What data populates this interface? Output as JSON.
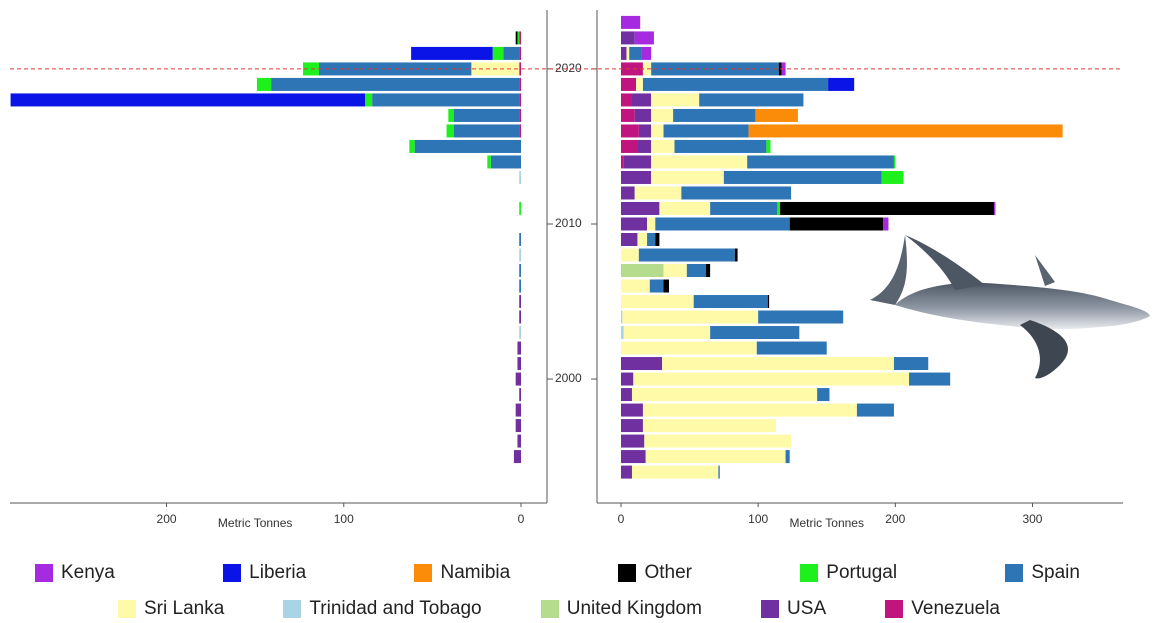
{
  "chart_data": [
    {
      "type": "bar",
      "orientation": "horizontal",
      "stacked": true,
      "x_reversed": true,
      "xlabel": "Metric Tonnes",
      "xlim": [
        0,
        303
      ],
      "xticks": [
        0,
        100,
        200,
        300
      ],
      "ylim": [
        1992.2,
        2023.8
      ],
      "yticks": [
        2000,
        2010,
        2020
      ],
      "reference_line": {
        "value": 2020,
        "color": "#e03a3a"
      },
      "y": [
        1994,
        1995,
        1996,
        1997,
        1998,
        1999,
        2000,
        2001,
        2002,
        2003,
        2004,
        2005,
        2006,
        2007,
        2008,
        2009,
        2010,
        2011,
        2012,
        2013,
        2014,
        2015,
        2016,
        2017,
        2018,
        2019,
        2020,
        2021,
        2022,
        2023
      ],
      "series": [
        {
          "values": [
            null,
            null,
            null,
            null,
            null,
            null,
            null,
            null,
            null,
            null,
            null,
            null,
            null,
            null,
            null,
            null,
            null,
            null,
            null,
            null,
            null,
            null,
            1,
            1,
            1,
            1,
            1,
            1,
            1,
            null
          ]
        },
        {
          "values": [
            null,
            4,
            2,
            3,
            3,
            1,
            3,
            2,
            2,
            null,
            1,
            1,
            null,
            null,
            null,
            null,
            null,
            null,
            null,
            null,
            null,
            null,
            null,
            null,
            null,
            null,
            null,
            null,
            null,
            null
          ]
        },
        {
          "values": [
            null,
            null,
            null,
            null,
            null,
            null,
            null,
            null,
            null,
            null,
            null,
            null,
            null,
            null,
            null,
            null,
            null,
            null,
            null,
            null,
            null,
            null,
            null,
            null,
            null,
            null,
            null,
            null,
            null,
            null
          ]
        },
        {
          "values": [
            null,
            null,
            null,
            null,
            null,
            null,
            null,
            null,
            null,
            1,
            null,
            null,
            null,
            null,
            1,
            null,
            null,
            null,
            null,
            1,
            null,
            null,
            null,
            null,
            null,
            null,
            null,
            null,
            null,
            null
          ]
        },
        {
          "values": [
            null,
            null,
            null,
            null,
            null,
            null,
            null,
            null,
            null,
            null,
            null,
            null,
            null,
            null,
            null,
            null,
            null,
            null,
            null,
            null,
            null,
            null,
            null,
            null,
            null,
            null,
            27,
            null,
            null,
            null
          ]
        },
        {
          "values": [
            null,
            null,
            null,
            null,
            null,
            null,
            null,
            null,
            null,
            null,
            null,
            null,
            1,
            1,
            null,
            1,
            null,
            null,
            null,
            null,
            17,
            60,
            37,
            37,
            83,
            140,
            86,
            9,
            null,
            null
          ]
        },
        {
          "values": [
            null,
            null,
            null,
            null,
            null,
            null,
            null,
            null,
            null,
            null,
            null,
            null,
            null,
            null,
            null,
            null,
            null,
            1,
            null,
            null,
            2,
            3,
            4,
            3,
            4,
            8,
            9,
            6,
            1,
            null
          ]
        },
        {
          "values": [
            null,
            null,
            null,
            null,
            null,
            null,
            null,
            null,
            null,
            null,
            null,
            null,
            null,
            null,
            null,
            null,
            null,
            null,
            null,
            null,
            null,
            null,
            null,
            null,
            null,
            null,
            null,
            null,
            1,
            null
          ]
        },
        {
          "values": [
            null,
            null,
            null,
            null,
            null,
            null,
            null,
            null,
            null,
            null,
            null,
            null,
            null,
            null,
            null,
            null,
            null,
            null,
            null,
            null,
            null,
            null,
            null,
            null,
            200,
            null,
            null,
            46,
            null,
            null
          ]
        },
        {
          "values": [
            null,
            null,
            null,
            null,
            null,
            null,
            null,
            null,
            null,
            null,
            null,
            null,
            null,
            null,
            null,
            null,
            null,
            null,
            null,
            null,
            null,
            null,
            null,
            null,
            null,
            null,
            null,
            null,
            null,
            null
          ]
        },
        {
          "values": [
            null,
            null,
            null,
            null,
            null,
            null,
            null,
            null,
            null,
            null,
            null,
            null,
            null,
            null,
            null,
            null,
            null,
            null,
            null,
            null,
            null,
            null,
            null,
            null,
            null,
            null,
            null,
            null,
            null,
            null
          ]
        }
      ]
    },
    {
      "type": "bar",
      "orientation": "horizontal",
      "stacked": true,
      "xlabel": "Metric Tonnes",
      "xlim": [
        -17.5,
        366
      ],
      "xticks": [
        0,
        100,
        200,
        300
      ],
      "ylim": [
        1992.2,
        2023.8
      ],
      "y": [
        1994,
        1995,
        1996,
        1997,
        1998,
        1999,
        2000,
        2001,
        2002,
        2003,
        2004,
        2005,
        2006,
        2007,
        2008,
        2009,
        2010,
        2011,
        2012,
        2013,
        2014,
        2015,
        2016,
        2017,
        2018,
        2019,
        2020,
        2021,
        2022,
        2023
      ],
      "series": [
        {
          "name": "Venezuela",
          "color": "#c0157f",
          "values": [
            null,
            null,
            null,
            null,
            null,
            null,
            null,
            null,
            null,
            null,
            null,
            null,
            null,
            null,
            null,
            null,
            null,
            null,
            null,
            null,
            2,
            12,
            13,
            10,
            8,
            11,
            16,
            null,
            null,
            null
          ]
        },
        {
          "name": "USA",
          "color": "#7030a0",
          "values": [
            8,
            18,
            17,
            16,
            16,
            8,
            9,
            30,
            null,
            null,
            null,
            null,
            null,
            null,
            null,
            12,
            19,
            28,
            10,
            22,
            20,
            10,
            9,
            12,
            14,
            null,
            null,
            4,
            10,
            null
          ]
        },
        {
          "name": "United Kingdom",
          "color": "#b5dc8c",
          "values": [
            null,
            null,
            null,
            null,
            null,
            null,
            null,
            null,
            null,
            null,
            null,
            null,
            null,
            31,
            null,
            null,
            null,
            null,
            null,
            null,
            null,
            null,
            null,
            null,
            null,
            null,
            null,
            null,
            null,
            null
          ]
        },
        {
          "name": "Trinidad and Tobago",
          "color": "#a8d4e6",
          "values": [
            null,
            null,
            null,
            null,
            null,
            null,
            null,
            null,
            null,
            2,
            1,
            null,
            null,
            null,
            null,
            null,
            null,
            null,
            null,
            null,
            null,
            null,
            null,
            null,
            null,
            null,
            null,
            null,
            null,
            null
          ]
        },
        {
          "name": "Sri Lanka",
          "color": "#fffaa8",
          "values": [
            63,
            102,
            107,
            97,
            156,
            135,
            201,
            169,
            99,
            63,
            99,
            53,
            21,
            17,
            13,
            7,
            6,
            37,
            34,
            53,
            70,
            17,
            9,
            16,
            35,
            5,
            6,
            2,
            null,
            null
          ]
        },
        {
          "name": "Spain",
          "color": "#2e75b6",
          "values": [
            1,
            3,
            null,
            null,
            27,
            9,
            30,
            25,
            51,
            65,
            62,
            54,
            10,
            14,
            70,
            6,
            98,
            49,
            80,
            115,
            107,
            67,
            62,
            60,
            76,
            135,
            93,
            9,
            null,
            null
          ]
        },
        {
          "name": "Portugal",
          "color": "#1ef01e",
          "values": [
            null,
            null,
            null,
            null,
            null,
            null,
            null,
            null,
            null,
            null,
            null,
            null,
            null,
            null,
            null,
            null,
            null,
            2,
            null,
            16,
            1,
            3,
            null,
            null,
            null,
            null,
            null,
            null,
            null,
            null
          ]
        },
        {
          "name": "Other",
          "color": "#000000",
          "values": [
            null,
            null,
            null,
            null,
            null,
            null,
            null,
            null,
            null,
            null,
            null,
            1,
            4,
            3,
            2,
            3,
            68,
            156,
            null,
            null,
            null,
            null,
            null,
            null,
            null,
            null,
            2,
            null,
            null,
            null
          ]
        },
        {
          "name": "Liberia",
          "color": "#0a14e6",
          "values": [
            null,
            null,
            null,
            null,
            null,
            null,
            null,
            null,
            null,
            null,
            null,
            null,
            null,
            null,
            null,
            null,
            null,
            null,
            null,
            null,
            null,
            null,
            null,
            null,
            null,
            19,
            null,
            null,
            null,
            null
          ]
        },
        {
          "name": "Namibia",
          "color": "#fb8c0a",
          "values": [
            null,
            null,
            null,
            null,
            null,
            null,
            null,
            null,
            null,
            null,
            null,
            null,
            null,
            null,
            null,
            null,
            null,
            null,
            null,
            null,
            null,
            null,
            229,
            31,
            null,
            null,
            null,
            null,
            null,
            null
          ]
        },
        {
          "name": "Kenya",
          "color": "#a52ae0",
          "values": [
            null,
            null,
            null,
            null,
            null,
            null,
            null,
            null,
            null,
            null,
            null,
            null,
            null,
            null,
            null,
            null,
            4,
            1,
            null,
            null,
            null,
            null,
            null,
            null,
            null,
            null,
            3,
            7,
            14,
            14
          ]
        }
      ]
    }
  ]
}
